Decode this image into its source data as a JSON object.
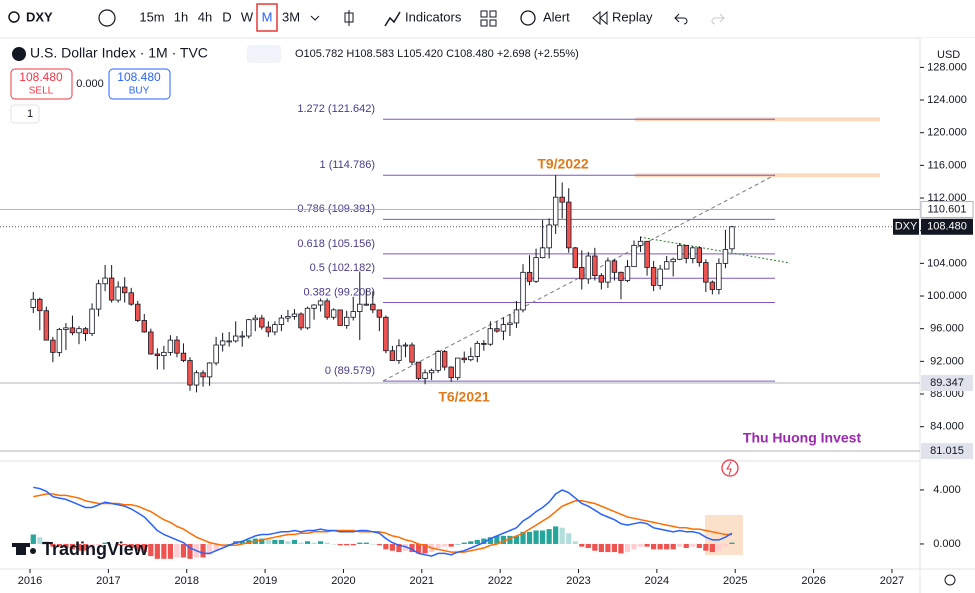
{
  "toolbar": {
    "symbol": "DXY",
    "intervals": [
      "15m",
      "1h",
      "4h",
      "D",
      "W",
      "M",
      "3M"
    ],
    "active_interval": "M",
    "buttons": [
      "Indicators",
      "Alert",
      "Replay"
    ]
  },
  "legend": {
    "title": "U.S. Dollar Index · 1M · TVC",
    "ohlc": "O105.782 H108.583 L105.420 C108.480 +2.698 (+2.55%)"
  },
  "trade": {
    "sell_price": "108.480",
    "sell": "SELL",
    "spread": "0.000",
    "buy_price": "108.480",
    "buy": "BUY"
  },
  "layers": "1",
  "currency": "USD",
  "logo": "TradingView",
  "chart_data": [
    {
      "type": "candlestick",
      "up_color": "#26a69a",
      "down_color": "#ef5350",
      "wick_color": "#131722",
      "categories": [
        null,
        null,
        null,
        null,
        null,
        null,
        null,
        null,
        null,
        null,
        null,
        null,
        null,
        null,
        null,
        null,
        null,
        null,
        null,
        null,
        null,
        null,
        null,
        null,
        null,
        null,
        null,
        null,
        null,
        null,
        null,
        null,
        null,
        null,
        null,
        null,
        null,
        null,
        null,
        null,
        null,
        null,
        null,
        null,
        null,
        null,
        null,
        null,
        null,
        null,
        null,
        null,
        null,
        null,
        null,
        null,
        null,
        null,
        null,
        null,
        null,
        null,
        null,
        null,
        null,
        null,
        null,
        null,
        null,
        null,
        null,
        null,
        null,
        null,
        null,
        null,
        null,
        null,
        null,
        null,
        null,
        null,
        null,
        null,
        null,
        null,
        null,
        null,
        null,
        null,
        null,
        null,
        null,
        null,
        null,
        null,
        null,
        null,
        null,
        null,
        null,
        null,
        null,
        null,
        null,
        null,
        null,
        null
      ],
      "values": [
        [
          98.6,
          100.5,
          97.9,
          99.6
        ],
        [
          99.6,
          99.8,
          95.8,
          98.2
        ],
        [
          98.2,
          98.7,
          94.6,
          94.6
        ],
        [
          94.6,
          95.0,
          91.9,
          93.1
        ],
        [
          93.1,
          96.1,
          92.6,
          95.9
        ],
        [
          95.9,
          96.7,
          93.4,
          96.1
        ],
        [
          96.1,
          97.6,
          95.2,
          95.5
        ],
        [
          95.5,
          96.3,
          94.1,
          96.0
        ],
        [
          96.0,
          96.2,
          94.5,
          95.4
        ],
        [
          95.4,
          99.1,
          95.1,
          98.4
        ],
        [
          98.4,
          102.0,
          97.5,
          101.5
        ],
        [
          101.5,
          103.8,
          100.6,
          102.2
        ],
        [
          102.2,
          103.8,
          99.2,
          99.5
        ],
        [
          99.5,
          101.8,
          99.2,
          101.1
        ],
        [
          101.1,
          102.3,
          99.2,
          100.4
        ],
        [
          100.4,
          101.0,
          98.8,
          99.0
        ],
        [
          99.0,
          99.4,
          96.8,
          97.0
        ],
        [
          97.0,
          97.8,
          95.5,
          95.6
        ],
        [
          95.6,
          96.0,
          92.8,
          92.9
        ],
        [
          92.9,
          93.6,
          91.0,
          92.7
        ],
        [
          92.7,
          93.9,
          91.0,
          93.1
        ],
        [
          93.1,
          95.2,
          92.7,
          94.6
        ],
        [
          94.6,
          95.1,
          92.5,
          93.0
        ],
        [
          93.0,
          94.2,
          91.9,
          92.1
        ],
        [
          92.1,
          92.5,
          88.4,
          89.1
        ],
        [
          89.1,
          90.9,
          88.2,
          90.6
        ],
        [
          90.6,
          90.9,
          88.9,
          90.1
        ],
        [
          90.1,
          91.9,
          89.0,
          91.8
        ],
        [
          91.8,
          95.0,
          91.5,
          94.0
        ],
        [
          94.0,
          95.5,
          93.2,
          94.5
        ],
        [
          94.5,
          95.6,
          93.8,
          94.5
        ],
        [
          94.5,
          96.9,
          94.3,
          95.1
        ],
        [
          95.1,
          95.7,
          93.8,
          95.1
        ],
        [
          95.1,
          97.2,
          94.8,
          97.1
        ],
        [
          97.1,
          97.7,
          95.7,
          97.3
        ],
        [
          97.3,
          97.7,
          95.9,
          96.2
        ],
        [
          96.2,
          96.9,
          95.0,
          95.6
        ],
        [
          95.6,
          96.9,
          95.2,
          96.5
        ],
        [
          96.5,
          97.7,
          95.7,
          97.3
        ],
        [
          97.3,
          98.3,
          96.8,
          97.5
        ],
        [
          97.5,
          98.4,
          97.1,
          97.8
        ],
        [
          97.8,
          98.0,
          95.8,
          96.1
        ],
        [
          96.1,
          98.7,
          95.9,
          98.5
        ],
        [
          98.5,
          99.0,
          97.1,
          98.9
        ],
        [
          98.9,
          99.7,
          98.1,
          99.4
        ],
        [
          99.4,
          99.7,
          97.1,
          97.4
        ],
        [
          97.4,
          98.5,
          97.1,
          98.3
        ],
        [
          98.3,
          98.3,
          96.4,
          96.4
        ],
        [
          96.4,
          98.2,
          96.0,
          97.4
        ],
        [
          97.4,
          99.9,
          97.0,
          98.1
        ],
        [
          98.1,
          103.0,
          94.6,
          99.0
        ],
        [
          99.0,
          100.9,
          98.8,
          99.0
        ],
        [
          99.0,
          100.6,
          97.9,
          98.3
        ],
        [
          98.3,
          98.3,
          95.7,
          97.4
        ],
        [
          97.4,
          97.6,
          93.0,
          93.3
        ],
        [
          93.3,
          93.9,
          92.1,
          92.1
        ],
        [
          92.1,
          94.7,
          91.7,
          93.9
        ],
        [
          93.9,
          94.3,
          92.5,
          94.0
        ],
        [
          94.0,
          94.3,
          91.5,
          91.9
        ],
        [
          91.9,
          91.9,
          89.7,
          89.9
        ],
        [
          89.9,
          91.0,
          89.2,
          90.6
        ],
        [
          90.6,
          91.1,
          89.7,
          90.9
        ],
        [
          90.9,
          93.4,
          90.6,
          93.2
        ],
        [
          93.2,
          93.4,
          90.9,
          91.3
        ],
        [
          91.3,
          91.4,
          89.5,
          90.0
        ],
        [
          90.0,
          92.4,
          89.7,
          92.4
        ],
        [
          92.4,
          93.2,
          91.8,
          92.2
        ],
        [
          92.2,
          93.7,
          92.0,
          92.6
        ],
        [
          92.6,
          94.5,
          91.9,
          94.2
        ],
        [
          94.2,
          94.6,
          93.3,
          94.1
        ],
        [
          94.1,
          96.9,
          93.9,
          96.0
        ],
        [
          96.0,
          96.9,
          95.5,
          95.7
        ],
        [
          95.7,
          97.4,
          94.6,
          96.5
        ],
        [
          96.5,
          97.8,
          95.1,
          96.7
        ],
        [
          96.7,
          99.4,
          96.1,
          98.3
        ],
        [
          98.3,
          103.9,
          98.0,
          102.9
        ],
        [
          102.9,
          105.0,
          101.3,
          101.8
        ],
        [
          101.8,
          105.8,
          101.6,
          104.7
        ],
        [
          104.7,
          109.3,
          104.6,
          105.9
        ],
        [
          105.9,
          109.5,
          104.6,
          108.7
        ],
        [
          108.7,
          114.8,
          107.6,
          112.1
        ],
        [
          112.1,
          113.9,
          109.5,
          111.5
        ],
        [
          111.5,
          113.2,
          105.3,
          105.9
        ],
        [
          105.9,
          106.0,
          103.4,
          103.5
        ],
        [
          103.5,
          105.6,
          100.8,
          102.1
        ],
        [
          102.1,
          105.4,
          101.5,
          104.9
        ],
        [
          104.9,
          105.9,
          101.9,
          102.5
        ],
        [
          102.5,
          102.8,
          100.8,
          101.7
        ],
        [
          101.7,
          104.7,
          101.0,
          104.3
        ],
        [
          104.3,
          104.5,
          101.9,
          102.9
        ],
        [
          102.9,
          103.0,
          99.6,
          101.9
        ],
        [
          101.9,
          104.4,
          101.7,
          103.6
        ],
        [
          103.6,
          106.8,
          103.6,
          106.2
        ],
        [
          106.2,
          107.3,
          105.4,
          106.7
        ],
        [
          106.7,
          106.7,
          102.5,
          103.5
        ],
        [
          103.5,
          104.3,
          100.6,
          101.3
        ],
        [
          101.3,
          103.8,
          100.8,
          103.3
        ],
        [
          103.3,
          104.9,
          103.3,
          104.2
        ],
        [
          104.2,
          104.7,
          102.4,
          104.5
        ],
        [
          104.5,
          106.5,
          104.4,
          106.2
        ],
        [
          106.2,
          106.2,
          104.0,
          104.6
        ],
        [
          104.6,
          106.1,
          104.0,
          105.9
        ],
        [
          105.9,
          106.1,
          103.6,
          104.1
        ],
        [
          104.1,
          104.5,
          100.5,
          101.7
        ],
        [
          101.7,
          101.9,
          100.2,
          100.8
        ],
        [
          100.8,
          104.6,
          100.2,
          104.0
        ],
        [
          104.0,
          108.1,
          103.4,
          105.7
        ],
        [
          105.782,
          108.583,
          105.42,
          108.48
        ]
      ],
      "ylim": [
        79.92,
        131.35
      ],
      "yticks": [
        {
          "value": 84,
          "label": "84.000"
        },
        {
          "value": 88,
          "label": "88.000"
        },
        {
          "value": 92,
          "label": "92.000"
        },
        {
          "value": 96,
          "label": "96.000"
        },
        {
          "value": 100,
          "label": "100.000"
        },
        {
          "value": 104,
          "label": "104.000"
        },
        {
          "value": 108,
          "label": "108.000"
        },
        {
          "value": 112,
          "label": "112.000"
        },
        {
          "value": 116,
          "label": "116.000"
        },
        {
          "value": 120,
          "label": "120.000"
        },
        {
          "value": 124,
          "label": "124.000"
        },
        {
          "value": 128,
          "label": "128.000"
        }
      ],
      "xlim": [
        2015.617,
        2027.358
      ],
      "xticks": [
        2016,
        2017,
        2018,
        2019,
        2020,
        2021,
        2022,
        2023,
        2024,
        2025,
        2026,
        2027
      ],
      "fib_color": "#7e57c2",
      "fib_levels": [
        {
          "label": "1.272 (121.642)",
          "value": 121.642,
          "extend": true
        },
        {
          "label": "1 (114.786)",
          "value": 114.786,
          "extend": true
        },
        {
          "label": "0.786 (109.391)",
          "value": 109.391,
          "extend": false
        },
        {
          "label": "0.618 (105.156)",
          "value": 105.156,
          "extend": false
        },
        {
          "label": "0.5 (102.182)",
          "value": 102.182,
          "extend": false
        },
        {
          "label": "0.382 (99.208)",
          "value": 99.208,
          "extend": false
        },
        {
          "label": "0 (89.579)",
          "value": 89.579,
          "extend": false
        }
      ],
      "price_labels": [
        {
          "value": 110.601,
          "label": "110.601",
          "style": "light"
        },
        {
          "value": 108.48,
          "label": "108.480",
          "name": "DXY",
          "style": "dark"
        },
        {
          "value": 89.347,
          "label": "89.347",
          "style": "grey"
        },
        {
          "value": 81.015,
          "label": "81.015",
          "style": "grey"
        }
      ],
      "annotations": [
        {
          "text": "T9/2022",
          "color": "#e07b1a"
        },
        {
          "text": "T6/2021",
          "color": "#e07b1a"
        },
        {
          "text": "Thu Huong Invest",
          "color": "#9c27b0"
        }
      ]
    },
    {
      "type": "macd",
      "macd": {
        "color": "#2962ff",
        "values": [
          4.2,
          4.1,
          3.9,
          3.5,
          3.4,
          3.3,
          3.1,
          2.9,
          2.7,
          2.7,
          2.9,
          3.1,
          3.0,
          2.9,
          2.8,
          2.6,
          2.3,
          2.0,
          1.5,
          1.0,
          0.7,
          0.5,
          0.3,
          0.1,
          -0.3,
          -0.5,
          -0.7,
          -0.7,
          -0.5,
          -0.3,
          -0.1,
          0.1,
          0.2,
          0.4,
          0.6,
          0.7,
          0.7,
          0.8,
          0.9,
          0.9,
          1.0,
          0.9,
          1.0,
          1.0,
          1.1,
          1.0,
          1.0,
          0.9,
          0.9,
          0.9,
          1.0,
          1.0,
          0.9,
          0.8,
          0.4,
          0.1,
          -0.1,
          -0.2,
          -0.4,
          -0.7,
          -0.8,
          -0.9,
          -0.7,
          -0.7,
          -0.8,
          -0.6,
          -0.5,
          -0.3,
          -0.1,
          0.1,
          0.4,
          0.6,
          0.8,
          1.0,
          1.2,
          1.7,
          2.0,
          2.4,
          2.7,
          3.1,
          3.7,
          4.0,
          3.8,
          3.4,
          3.0,
          2.8,
          2.5,
          2.2,
          2.0,
          1.8,
          1.5,
          1.4,
          1.5,
          1.6,
          1.5,
          1.2,
          1.1,
          1.0,
          0.9,
          1.0,
          0.9,
          0.9,
          0.8,
          0.5,
          0.3,
          0.3,
          0.5,
          0.8
        ]
      },
      "signal": {
        "color": "#ff6d00",
        "values": [
          3.5,
          3.6,
          3.7,
          3.7,
          3.6,
          3.6,
          3.5,
          3.4,
          3.2,
          3.1,
          3.0,
          3.0,
          3.0,
          3.0,
          2.9,
          2.9,
          2.8,
          2.6,
          2.4,
          2.1,
          1.8,
          1.6,
          1.3,
          1.1,
          0.8,
          0.5,
          0.3,
          0.1,
          0.0,
          -0.1,
          -0.1,
          -0.1,
          0.0,
          0.1,
          0.2,
          0.3,
          0.4,
          0.5,
          0.6,
          0.7,
          0.7,
          0.8,
          0.8,
          0.9,
          0.9,
          0.9,
          1.0,
          1.0,
          1.0,
          1.0,
          0.9,
          0.9,
          0.9,
          0.9,
          0.8,
          0.6,
          0.5,
          0.3,
          0.2,
          0.0,
          -0.1,
          -0.3,
          -0.4,
          -0.5,
          -0.6,
          -0.6,
          -0.6,
          -0.5,
          -0.4,
          -0.3,
          -0.1,
          0.0,
          0.2,
          0.4,
          0.6,
          0.8,
          1.1,
          1.4,
          1.7,
          2.0,
          2.4,
          2.8,
          3.0,
          3.2,
          3.2,
          3.1,
          3.0,
          2.8,
          2.6,
          2.4,
          2.2,
          2.0,
          1.9,
          1.8,
          1.7,
          1.6,
          1.5,
          1.4,
          1.3,
          1.2,
          1.2,
          1.1,
          1.1,
          1.0,
          0.9,
          0.8,
          0.7,
          0.7
        ]
      },
      "histogram": {
        "values": [
          0.7,
          0.5,
          0.2,
          -0.2,
          -0.2,
          -0.3,
          -0.4,
          -0.5,
          -0.5,
          -0.4,
          -0.1,
          0.1,
          0,
          -0.1,
          -0.1,
          -0.3,
          -0.5,
          -0.6,
          -0.9,
          -1.1,
          -1.1,
          -1.1,
          -1.0,
          -1.0,
          -1.1,
          -1.0,
          -1.0,
          -0.8,
          -0.5,
          -0.2,
          0,
          0.2,
          0.2,
          0.3,
          0.4,
          0.4,
          0.3,
          0.3,
          0.3,
          0.2,
          0.3,
          0.1,
          0.2,
          0.1,
          0.2,
          0.1,
          0,
          -0.1,
          -0.1,
          -0.1,
          0.1,
          0.1,
          0,
          -0.1,
          -0.4,
          -0.5,
          -0.6,
          -0.5,
          -0.6,
          -0.7,
          -0.7,
          -0.6,
          -0.3,
          -0.2,
          -0.2,
          0,
          0.1,
          0.2,
          0.3,
          0.4,
          0.5,
          0.6,
          0.6,
          0.6,
          0.6,
          0.9,
          0.9,
          1.0,
          1.0,
          1.1,
          1.3,
          1.2,
          0.8,
          0.2,
          -0.2,
          -0.3,
          -0.5,
          -0.6,
          -0.6,
          -0.6,
          -0.7,
          -0.6,
          -0.4,
          -0.2,
          -0.2,
          -0.4,
          -0.4,
          -0.4,
          -0.4,
          -0.2,
          -0.3,
          -0.2,
          -0.3,
          -0.5,
          -0.6,
          -0.5,
          -0.2,
          0.1
        ]
      },
      "ylim": [
        -1.78,
        6.07
      ],
      "yticks": [
        {
          "value": 4,
          "label": "4.000"
        },
        {
          "value": 0,
          "label": "0.000"
        }
      ]
    }
  ]
}
